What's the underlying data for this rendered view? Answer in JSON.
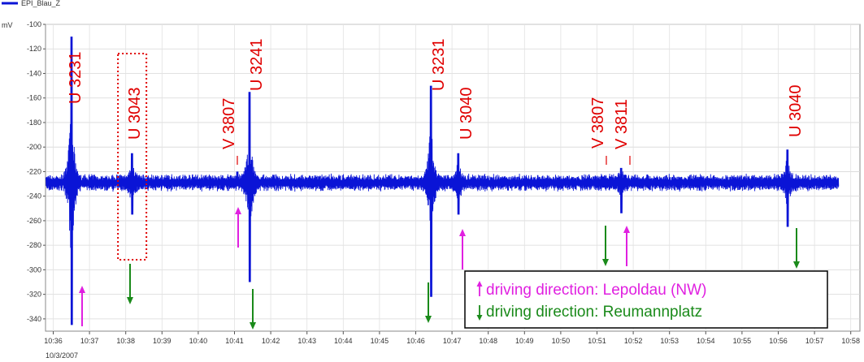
{
  "chart_data": {
    "type": "line",
    "legend": {
      "series_name": "EPI_Blau_Z",
      "position": "top-left"
    },
    "ylabel": "mV",
    "ylim": [
      -350,
      -100
    ],
    "yticks": [
      -100,
      -120,
      -140,
      -160,
      -180,
      -200,
      -220,
      -240,
      -260,
      -280,
      -300,
      -320,
      -340
    ],
    "xlim": [
      10.6,
      10.9833
    ],
    "x_unit": "minutes after 10:00",
    "xticks": [
      "10:36",
      "10:37",
      "10:38",
      "10:39",
      "10:40",
      "10:41",
      "10:42",
      "10:43",
      "10:44",
      "10:45",
      "10:46",
      "10:47",
      "10:48",
      "10:49",
      "10:50",
      "10:51",
      "10:52",
      "10:53",
      "10:54",
      "10:55",
      "10:56",
      "10:57",
      "10:58"
    ],
    "date_label": "10/3/2007",
    "grid": true,
    "series_color": "#0a14d6",
    "baseline": -229,
    "events": [
      {
        "time": "10:36:30",
        "min_mv": -345,
        "max_mv": -110
      },
      {
        "time": "10:38:10",
        "min_mv": -255,
        "max_mv": -205
      },
      {
        "time": "10:41:05",
        "min_mv": -232,
        "max_mv": -220
      },
      {
        "time": "10:41:25",
        "min_mv": -310,
        "max_mv": -155
      },
      {
        "time": "10:46:25",
        "min_mv": -322,
        "max_mv": -150
      },
      {
        "time": "10:47:10",
        "min_mv": -255,
        "max_mv": -205
      },
      {
        "time": "10:51:10",
        "min_mv": -233,
        "max_mv": -224
      },
      {
        "time": "10:51:40",
        "min_mv": -254,
        "max_mv": -217
      },
      {
        "time": "10:56:15",
        "min_mv": -265,
        "max_mv": -202
      }
    ],
    "annotations": [
      {
        "label": "U 3231",
        "time": "10:36:30",
        "direction": "lepoldau"
      },
      {
        "label": "U 3043",
        "time": "10:38:10",
        "direction": "reumannplatz",
        "boxed": true
      },
      {
        "label": "V 3807",
        "time": "10:41:05",
        "direction": "lepoldau"
      },
      {
        "label": "U 3241",
        "time": "10:41:25",
        "direction": "reumannplatz"
      },
      {
        "label": "U 3231",
        "time": "10:46:25",
        "direction": "reumannplatz"
      },
      {
        "label": "U 3040",
        "time": "10:47:10",
        "direction": "lepoldau"
      },
      {
        "label": "V 3807",
        "time": "10:51:10",
        "direction": "reumannplatz"
      },
      {
        "label": "V 3811",
        "time": "10:51:40",
        "direction": "lepoldau"
      },
      {
        "label": "U 3040",
        "time": "10:56:15",
        "direction": "reumannplatz"
      }
    ],
    "direction_legend": [
      {
        "key": "lepoldau",
        "text": "driving direction: Lepoldau (NW)",
        "color": "#e020e0",
        "arrow": "up"
      },
      {
        "key": "reumannplatz",
        "text": "driving direction: Reumannplatz",
        "color": "#1a8a1a",
        "arrow": "down"
      }
    ],
    "label_color": "#e00000"
  }
}
